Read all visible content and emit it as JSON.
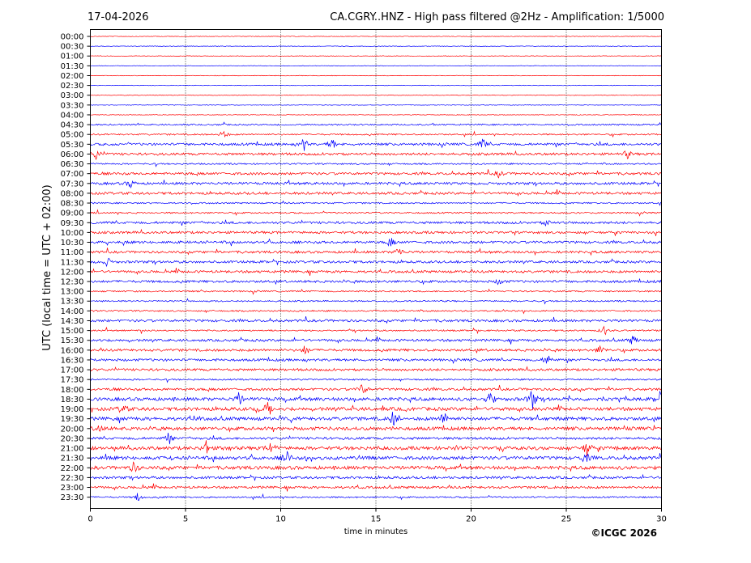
{
  "header": {
    "date": "17-04-2026",
    "title": "CA.CGRY..HNZ - High pass filtered @2Hz - Amplification: 1/5000"
  },
  "footer": {
    "copyright": "©ICGC 2026"
  },
  "chart_data": {
    "type": "line",
    "title": "CA.CGRY..HNZ - High pass filtered @2Hz - Amplification: 1/5000",
    "xlabel": "time in minutes",
    "ylabel": "UTC (local time = UTC + 02:00)",
    "xlim": [
      0,
      30
    ],
    "x_ticks": [
      "0",
      "5",
      "10",
      "15",
      "20",
      "25",
      "30"
    ],
    "row_labels": [
      "00:00",
      "00:30",
      "01:00",
      "01:30",
      "02:00",
      "02:30",
      "03:00",
      "03:30",
      "04:00",
      "04:30",
      "05:00",
      "05:30",
      "06:00",
      "06:30",
      "07:00",
      "07:30",
      "08:00",
      "08:30",
      "09:00",
      "09:30",
      "10:00",
      "10:30",
      "11:00",
      "11:30",
      "12:00",
      "12:30",
      "13:00",
      "13:30",
      "14:00",
      "14:30",
      "15:00",
      "15:30",
      "16:00",
      "16:30",
      "17:00",
      "17:30",
      "18:00",
      "18:30",
      "19:00",
      "19:30",
      "20:00",
      "20:30",
      "21:00",
      "21:30",
      "22:00",
      "22:30",
      "23:00",
      "23:30"
    ],
    "series_colors": [
      "#ff0000",
      "#0000ff"
    ],
    "grid": "vertical dotted lines every 5 minutes",
    "activity_levels": [
      0,
      0,
      0,
      0,
      0,
      0,
      0,
      0,
      0,
      1,
      1,
      2,
      2,
      1,
      2,
      2,
      2,
      1,
      1,
      2,
      2,
      2,
      2,
      2,
      2,
      2,
      1,
      1,
      1,
      2,
      1,
      2,
      2,
      2,
      2,
      1,
      2,
      3,
      3,
      3,
      3,
      2,
      3,
      3,
      3,
      2,
      2,
      1
    ],
    "events": [
      {
        "row": "05:00",
        "minute": 7.0,
        "amp": 0.6
      },
      {
        "row": "05:30",
        "minute": 11.2,
        "amp": 1.0
      },
      {
        "row": "05:30",
        "minute": 12.7,
        "amp": 0.8
      },
      {
        "row": "05:30",
        "minute": 20.6,
        "amp": 0.8
      },
      {
        "row": "06:00",
        "minute": 0.3,
        "amp": 0.7
      },
      {
        "row": "06:00",
        "minute": 28.2,
        "amp": 0.6
      },
      {
        "row": "07:00",
        "minute": 21.5,
        "amp": 0.6
      },
      {
        "row": "07:30",
        "minute": 2.1,
        "amp": 0.6
      },
      {
        "row": "09:30",
        "minute": 24.0,
        "amp": 0.5
      },
      {
        "row": "10:30",
        "minute": 15.8,
        "amp": 0.6
      },
      {
        "row": "11:00",
        "minute": 16.2,
        "amp": 0.8
      },
      {
        "row": "11:30",
        "minute": 0.9,
        "amp": 0.6
      },
      {
        "row": "12:30",
        "minute": 21.5,
        "amp": 0.5
      },
      {
        "row": "15:00",
        "minute": 27.0,
        "amp": 0.7
      },
      {
        "row": "15:30",
        "minute": 28.5,
        "amp": 0.7
      },
      {
        "row": "16:00",
        "minute": 11.3,
        "amp": 0.7
      },
      {
        "row": "16:00",
        "minute": 26.8,
        "amp": 0.7
      },
      {
        "row": "16:30",
        "minute": 24.0,
        "amp": 0.9
      },
      {
        "row": "18:00",
        "minute": 14.3,
        "amp": 0.9
      },
      {
        "row": "18:30",
        "minute": 7.8,
        "amp": 0.9
      },
      {
        "row": "18:30",
        "minute": 21.0,
        "amp": 1.2
      },
      {
        "row": "18:30",
        "minute": 23.2,
        "amp": 1.5
      },
      {
        "row": "18:30",
        "minute": 29.9,
        "amp": 1.3
      },
      {
        "row": "19:00",
        "minute": 1.7,
        "amp": 0.8
      },
      {
        "row": "19:00",
        "minute": 9.3,
        "amp": 0.8
      },
      {
        "row": "19:30",
        "minute": 15.9,
        "amp": 1.0
      },
      {
        "row": "19:30",
        "minute": 18.6,
        "amp": 1.1
      },
      {
        "row": "20:00",
        "minute": 0.5,
        "amp": 0.6
      },
      {
        "row": "20:30",
        "minute": 4.1,
        "amp": 0.7
      },
      {
        "row": "21:00",
        "minute": 6.1,
        "amp": 1.0
      },
      {
        "row": "21:00",
        "minute": 9.5,
        "amp": 0.9
      },
      {
        "row": "21:00",
        "minute": 26.1,
        "amp": 1.1
      },
      {
        "row": "21:30",
        "minute": 10.3,
        "amp": 0.9
      },
      {
        "row": "21:30",
        "minute": 26.0,
        "amp": 0.8
      },
      {
        "row": "22:00",
        "minute": 2.3,
        "amp": 0.8
      },
      {
        "row": "23:30",
        "minute": 2.5,
        "amp": 0.6
      }
    ]
  }
}
